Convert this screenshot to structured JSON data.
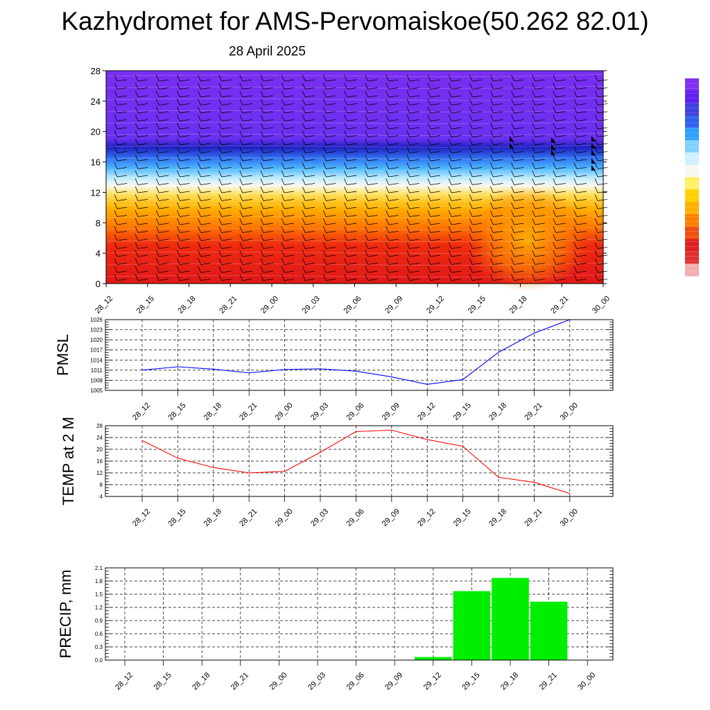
{
  "header": {
    "title": "Kazhydromet for AMS-Pervomaiskoe(50.262 82.01)",
    "subtitle": "28 April 2025"
  },
  "colors": {
    "pmsl_line": "#0000ff",
    "temp_line": "#ff0000",
    "precip_bar": "#00ee00",
    "cross_hot": "#e01010",
    "cross_warm": "#ffb000",
    "cross_mid": "#ffffd0",
    "cross_cold": "#30a0ff",
    "cross_top": "#7a2ef0"
  },
  "chart_data": [
    {
      "type": "heatmap",
      "title": "",
      "ylim": [
        0,
        28
      ],
      "yticks": [
        0,
        4,
        8,
        12,
        16,
        20,
        24,
        28
      ],
      "categories": [
        "28_12",
        "28_15",
        "28_18",
        "28_21",
        "29_00",
        "29_03",
        "29_06",
        "29_09",
        "29_12",
        "29_15",
        "29_18",
        "29_21",
        "30_00"
      ],
      "colorbar_colors": [
        "#f0b0b0",
        "#e03030",
        "#e02020",
        "#f05010",
        "#ff8000",
        "#ffb000",
        "#ffd000",
        "#fff060",
        "#f8f8f0",
        "#d0f0ff",
        "#80d0ff",
        "#30a0ff",
        "#3060f0",
        "#4040e0",
        "#6020f0",
        "#8030f0"
      ],
      "wind_barbs": true
    },
    {
      "type": "line",
      "ylabel": "PMSL",
      "categories": [
        "28_12",
        "28_15",
        "28_18",
        "28_21",
        "29_00",
        "29_03",
        "29_06",
        "29_09",
        "29_12",
        "29_15",
        "29_18",
        "29_21",
        "30_00"
      ],
      "values": [
        1011,
        1012,
        1011.3,
        1010.2,
        1011.2,
        1011.4,
        1010.7,
        1009,
        1006.8,
        1008.2,
        1016.3,
        1022,
        1026
      ],
      "ylim": [
        1005,
        1026
      ],
      "yticks": [
        1005,
        1008,
        1011,
        1014,
        1017,
        1020,
        1023,
        1026
      ],
      "grid": true
    },
    {
      "type": "line",
      "ylabel": "TEMP at 2 M",
      "categories": [
        "28_12",
        "28_15",
        "28_18",
        "28_21",
        "29_00",
        "29_03",
        "29_06",
        "29_09",
        "29_12",
        "29_15",
        "29_18",
        "29_21",
        "30_00"
      ],
      "values": [
        23,
        17,
        13.8,
        12,
        12.5,
        19,
        26,
        26.5,
        23.3,
        21,
        10.5,
        8.8,
        5
      ],
      "ylim": [
        4,
        28
      ],
      "yticks": [
        4,
        8,
        12,
        16,
        20,
        24,
        28
      ],
      "grid": true
    },
    {
      "type": "bar",
      "ylabel": "PRECIP, mm",
      "categories": [
        "28_12",
        "28_15",
        "28_18",
        "28_21",
        "29_00",
        "29_03",
        "29_06",
        "29_09",
        "29_12",
        "29_15",
        "29_18",
        "29_21",
        "30_00"
      ],
      "values": [
        0,
        0,
        0,
        0,
        0,
        0,
        0,
        0,
        0.07,
        1.57,
        1.87,
        1.33,
        0
      ],
      "ylim": [
        0,
        2.1
      ],
      "yticks": [
        "0.0",
        "0.3",
        "0.6",
        "0.9",
        "1.2",
        "1.5",
        "1.8",
        "2.1"
      ],
      "grid": true
    }
  ]
}
